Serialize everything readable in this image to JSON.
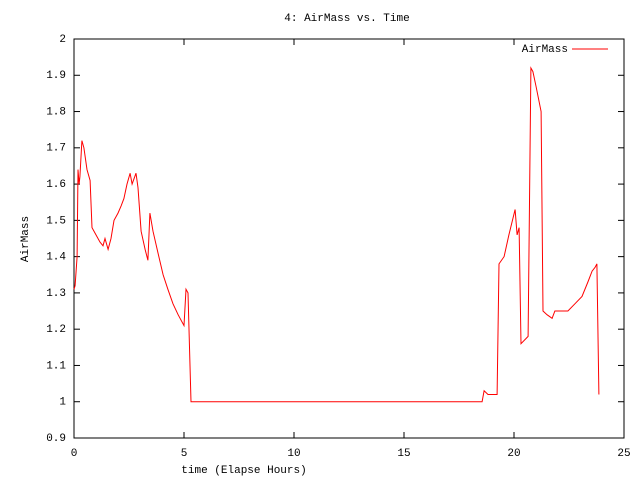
{
  "chart_data": {
    "type": "line",
    "title": "4: AirMass vs. Time",
    "x_label": "time (Elapse Hours)",
    "y_label": "AirMass",
    "x": [
      0,
      0.05,
      0.14,
      0.18,
      0.23,
      0.27,
      0.36,
      0.45,
      0.59,
      0.73,
      0.82,
      1.0,
      1.18,
      1.32,
      1.41,
      1.55,
      1.68,
      1.82,
      2.0,
      2.14,
      2.27,
      2.41,
      2.55,
      2.64,
      2.82,
      2.91,
      3.05,
      3.23,
      3.36,
      3.45,
      3.59,
      3.82,
      4.05,
      4.27,
      4.5,
      4.73,
      5.0,
      5.09,
      5.18,
      5.32,
      18.55,
      18.64,
      18.82,
      19.23,
      19.32,
      19.55,
      19.77,
      20.05,
      20.14,
      20.23,
      20.32,
      20.64,
      20.77,
      20.86,
      21.0,
      21.23,
      21.32,
      21.5,
      21.73,
      21.86,
      22.09,
      22.45,
      22.77,
      23.09,
      23.36,
      23.55,
      23.68,
      23.77,
      23.86
    ],
    "series": [
      {
        "name": "AirMass",
        "color": "#ff0000",
        "values": [
          1.31,
          1.32,
          1.4,
          1.64,
          1.6,
          1.62,
          1.72,
          1.7,
          1.64,
          1.61,
          1.48,
          1.46,
          1.44,
          1.43,
          1.45,
          1.42,
          1.45,
          1.5,
          1.52,
          1.54,
          1.56,
          1.6,
          1.63,
          1.6,
          1.63,
          1.59,
          1.47,
          1.42,
          1.39,
          1.52,
          1.47,
          1.41,
          1.35,
          1.31,
          1.27,
          1.24,
          1.21,
          1.31,
          1.3,
          1.0,
          1.0,
          1.03,
          1.02,
          1.02,
          1.38,
          1.4,
          1.46,
          1.53,
          1.46,
          1.48,
          1.16,
          1.18,
          1.92,
          1.91,
          1.87,
          1.8,
          1.25,
          1.24,
          1.23,
          1.25,
          1.25,
          1.25,
          1.27,
          1.29,
          1.33,
          1.36,
          1.37,
          1.38,
          1.02
        ]
      }
    ],
    "xlim": [
      0,
      25
    ],
    "xticks": [
      0,
      5,
      10,
      15,
      20,
      25
    ],
    "ylim": [
      0.9,
      2
    ],
    "yticks": [
      0.9,
      1,
      1.1,
      1.2,
      1.3,
      1.4,
      1.5,
      1.6,
      1.7,
      1.8,
      1.9,
      2
    ],
    "legend": "top right"
  }
}
